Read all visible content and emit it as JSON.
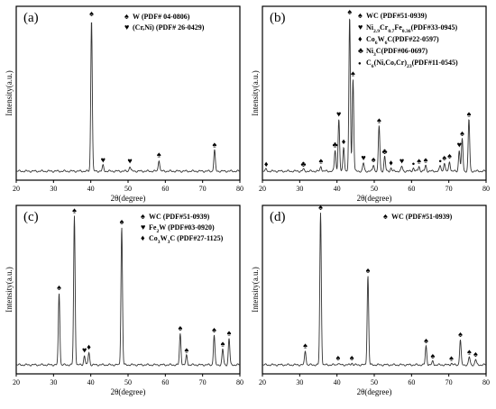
{
  "chart_data": [
    {
      "type": "line",
      "panel_label": "(a)",
      "xlabel": "2θ(degree)",
      "ylabel": "Intensity(a.u.)",
      "xlim": [
        20,
        80
      ],
      "xticks": [
        20,
        30,
        40,
        50,
        60,
        70,
        80
      ],
      "legend_placement": "top-right",
      "legend": [
        {
          "marker": "spade",
          "text": "W (PDF# 04-0806)"
        },
        {
          "marker": "heart",
          "text": "(Cr,Ni) (PDF# 26-0429)"
        }
      ],
      "peaks": [
        {
          "x": 40.2,
          "h": 0.94,
          "marker": "spade"
        },
        {
          "x": 43.3,
          "h": 0.035,
          "marker": "heart"
        },
        {
          "x": 50.5,
          "h": 0.03,
          "marker": "heart"
        },
        {
          "x": 58.3,
          "h": 0.07,
          "marker": "spade"
        },
        {
          "x": 73.2,
          "h": 0.13,
          "marker": "spade"
        }
      ]
    },
    {
      "type": "line",
      "panel_label": "(b)",
      "xlabel": "2θ(degree)",
      "ylabel": "Intensity(a.u.)",
      "xlim": [
        20,
        80
      ],
      "xticks": [
        20,
        30,
        40,
        50,
        60,
        70,
        80
      ],
      "legend_placement": "top-right",
      "legend": [
        {
          "marker": "spade",
          "text": "WC (PDF#51-0939)"
        },
        {
          "marker": "heart",
          "text": "Ni2.9Cr0.7Fe0.36(PDF#33-0945)"
        },
        {
          "marker": "diamond",
          "text": "Co6W6C(PDF#22-0597)"
        },
        {
          "marker": "club",
          "text": "Ni3C(PDF#06-0697)"
        },
        {
          "marker": "dot",
          "text": "C6(Ni,Co,Cr)23(PDF#11-0545)"
        }
      ],
      "peaks": [
        {
          "x": 21,
          "h": 0.012,
          "marker": "diamond"
        },
        {
          "x": 31,
          "h": 0.012,
          "marker": "club"
        },
        {
          "x": 35.7,
          "h": 0.03,
          "marker": "spade"
        },
        {
          "x": 39.5,
          "h": 0.13,
          "marker": "club"
        },
        {
          "x": 40.5,
          "h": 0.32,
          "marker": "heart"
        },
        {
          "x": 41.8,
          "h": 0.15,
          "marker": "diamond"
        },
        {
          "x": 43.4,
          "h": 0.95,
          "marker": "spade"
        },
        {
          "x": 44.3,
          "h": 0.57,
          "marker": "spade"
        },
        {
          "x": 47.1,
          "h": 0.05,
          "marker": "heart"
        },
        {
          "x": 49.8,
          "h": 0.04,
          "marker": "spade"
        },
        {
          "x": 51.3,
          "h": 0.28,
          "marker": "spade"
        },
        {
          "x": 52.8,
          "h": 0.09,
          "marker": "club"
        },
        {
          "x": 54.5,
          "h": 0.02,
          "marker": "diamond"
        },
        {
          "x": 57.4,
          "h": 0.03,
          "marker": "heart"
        },
        {
          "x": 60.5,
          "h": 0.02,
          "marker": "dot"
        },
        {
          "x": 62,
          "h": 0.03,
          "marker": "spade"
        },
        {
          "x": 63.8,
          "h": 0.035,
          "marker": "spade"
        },
        {
          "x": 67.7,
          "h": 0.035,
          "marker": "dot"
        },
        {
          "x": 68.8,
          "h": 0.05,
          "marker": "spade"
        },
        {
          "x": 70.2,
          "h": 0.06,
          "marker": "spade"
        },
        {
          "x": 72.8,
          "h": 0.13,
          "marker": "heart"
        },
        {
          "x": 73.6,
          "h": 0.2,
          "marker": "spade"
        },
        {
          "x": 75.4,
          "h": 0.32,
          "marker": "spade"
        }
      ]
    },
    {
      "type": "line",
      "panel_label": "(c)",
      "xlabel": "2θ(degree)",
      "ylabel": "Intensity(a.u.)",
      "xlim": [
        20,
        80
      ],
      "xticks": [
        20,
        30,
        40,
        50,
        60,
        70,
        80
      ],
      "legend_placement": "top-right",
      "legend": [
        {
          "marker": "spade",
          "text": "WC (PDF#51-0939)"
        },
        {
          "marker": "heart",
          "text": "Fe2W (PDF#03-0920)"
        },
        {
          "marker": "diamond",
          "text": "Co3W3C (PDF#27-1125)"
        }
      ],
      "peaks": [
        {
          "x": 31.5,
          "h": 0.46,
          "marker": "spade"
        },
        {
          "x": 35.6,
          "h": 0.95,
          "marker": "spade"
        },
        {
          "x": 38.3,
          "h": 0.06,
          "marker": "heart"
        },
        {
          "x": 39.5,
          "h": 0.08,
          "marker": "diamond"
        },
        {
          "x": 48.3,
          "h": 0.88,
          "marker": "spade"
        },
        {
          "x": 64,
          "h": 0.2,
          "marker": "spade"
        },
        {
          "x": 65.7,
          "h": 0.06,
          "marker": "spade"
        },
        {
          "x": 73.1,
          "h": 0.19,
          "marker": "spade"
        },
        {
          "x": 75.4,
          "h": 0.1,
          "marker": "spade"
        },
        {
          "x": 77.1,
          "h": 0.17,
          "marker": "spade"
        }
      ]
    },
    {
      "type": "line",
      "panel_label": "(d)",
      "xlabel": "2θ(degree)",
      "ylabel": "Intensity(a.u.)",
      "xlim": [
        20,
        80
      ],
      "xticks": [
        20,
        30,
        40,
        50,
        60,
        70,
        80
      ],
      "legend_placement": "top-right",
      "legend": [
        {
          "marker": "spade",
          "text": "WC (PDF#51-0939)"
        }
      ],
      "peaks": [
        {
          "x": 31.5,
          "h": 0.09,
          "marker": "spade"
        },
        {
          "x": 35.6,
          "h": 0.97,
          "marker": "spade"
        },
        {
          "x": 40.3,
          "h": 0.012,
          "marker": "spade"
        },
        {
          "x": 44,
          "h": 0.012,
          "marker": "spade"
        },
        {
          "x": 48.3,
          "h": 0.57,
          "marker": "spade"
        },
        {
          "x": 63.9,
          "h": 0.12,
          "marker": "spade"
        },
        {
          "x": 65.7,
          "h": 0.022,
          "marker": "spade"
        },
        {
          "x": 70.7,
          "h": 0.01,
          "marker": "spade"
        },
        {
          "x": 73.1,
          "h": 0.16,
          "marker": "spade"
        },
        {
          "x": 75.5,
          "h": 0.05,
          "marker": "spade"
        },
        {
          "x": 77.2,
          "h": 0.035,
          "marker": "spade"
        }
      ]
    }
  ]
}
